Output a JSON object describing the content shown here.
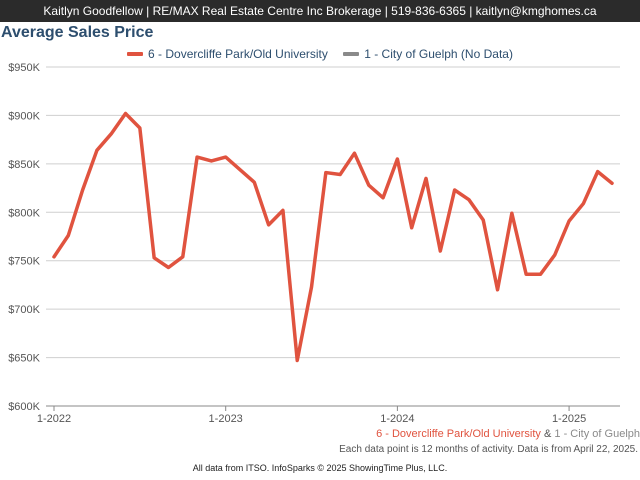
{
  "header": {
    "text": "Kaitlyn Goodfellow | RE/MAX Real Estate Centre Inc Brokerage | 519-836-6365 | kaitlyn@kmghomes.ca"
  },
  "legend": {
    "series1": "6 - Dovercliffe Park/Old University",
    "series2": "1 - City of Guelph (No Data)"
  },
  "footer": {
    "series_primary": "6 - Dovercliffe Park/Old University",
    "ampersand": "&",
    "series_secondary": "1 - City of Guelph",
    "note": "Each data point is 12 months of activity. Data is from April 22, 2025.",
    "source": "All data from ITSO. InfoSparks © 2025 ShowingTime Plus, LLC."
  },
  "colors": {
    "series1": "#e0533f",
    "series2": "#8a8a8a",
    "title": "#2d4e6e",
    "grid": "#cfcfcf"
  },
  "chart_data": {
    "type": "line",
    "title": "Average Sales Price",
    "xlabel": "",
    "ylabel": "",
    "ylim": [
      600000,
      950000
    ],
    "yticks": [
      600000,
      650000,
      700000,
      750000,
      800000,
      850000,
      900000,
      950000
    ],
    "ytick_labels": [
      "$600K",
      "$650K",
      "$700K",
      "$750K",
      "$800K",
      "$850K",
      "$900K",
      "$950K"
    ],
    "xlim": [
      0,
      39
    ],
    "xticks": [
      0,
      12,
      24,
      36
    ],
    "xtick_labels": [
      "1-2022",
      "1-2023",
      "1-2024",
      "1-2025"
    ],
    "series": [
      {
        "name": "6 - Dovercliffe Park/Old University",
        "x": [
          0,
          1,
          2,
          3,
          4,
          5,
          6,
          7,
          8,
          9,
          10,
          11,
          12,
          13,
          14,
          15,
          16,
          17,
          18,
          19,
          20,
          21,
          22,
          23,
          24,
          25,
          26,
          27,
          28,
          29,
          30,
          31,
          32,
          33,
          34,
          35,
          36,
          37,
          38,
          39
        ],
        "values": [
          754000,
          776000,
          823000,
          864000,
          881000,
          902000,
          887000,
          753000,
          743000,
          754000,
          857000,
          853000,
          857000,
          844000,
          831000,
          787000,
          802000,
          647000,
          723000,
          841000,
          839000,
          861000,
          828000,
          815000,
          855000,
          784000,
          835000,
          760000,
          823000,
          813000,
          792000,
          720000,
          799000,
          736000,
          736000,
          756000,
          791000,
          809000,
          842000,
          830000
        ]
      },
      {
        "name": "1 - City of Guelph (No Data)",
        "values": []
      }
    ]
  }
}
